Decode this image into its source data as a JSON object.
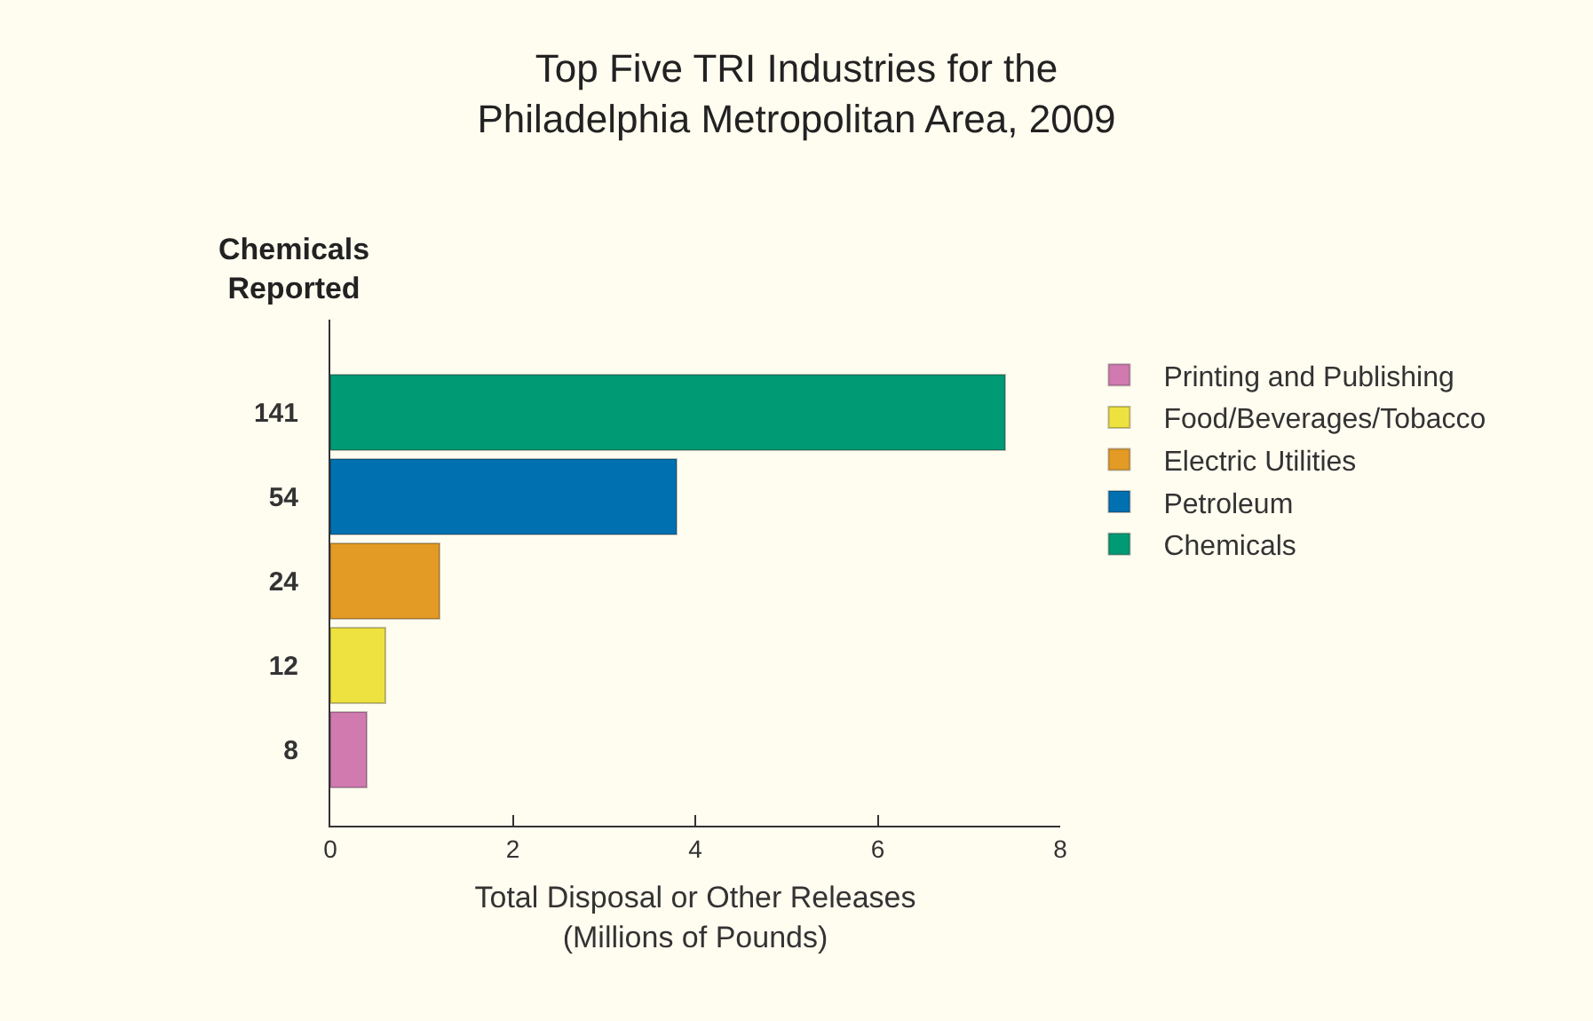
{
  "chart_data": {
    "type": "bar",
    "orientation": "horizontal",
    "stacked": true,
    "title": "Top Five TRI Industries for the\nPhiladelphia Metropolitan Area, 2009",
    "xlabel": "Total Disposal or Other Releases\n(Millions of Pounds)",
    "ylabel": "Chemicals\nReported",
    "categories": [
      "141",
      "54",
      "24",
      "12",
      "8"
    ],
    "series": [
      {
        "name": "Chemicals",
        "color": "#009a74",
        "values": [
          7.4,
          null,
          null,
          null,
          null
        ]
      },
      {
        "name": "Petroleum",
        "color": "#0070b0",
        "values": [
          null,
          3.8,
          null,
          null,
          null
        ]
      },
      {
        "name": "Electric Utilities",
        "color": "#e39b26",
        "values": [
          null,
          null,
          1.2,
          null,
          null
        ]
      },
      {
        "name": "Food/Beverages/Tobacco",
        "color": "#ede240",
        "values": [
          null,
          null,
          null,
          0.6,
          null
        ]
      },
      {
        "name": "Printing and Publishing",
        "color": "#d07ab0",
        "values": [
          null,
          null,
          null,
          null,
          0.4
        ]
      }
    ],
    "xlim": [
      0,
      8
    ],
    "xticks": [
      0,
      2,
      4,
      6,
      8
    ],
    "grid": false,
    "legend": "right"
  }
}
